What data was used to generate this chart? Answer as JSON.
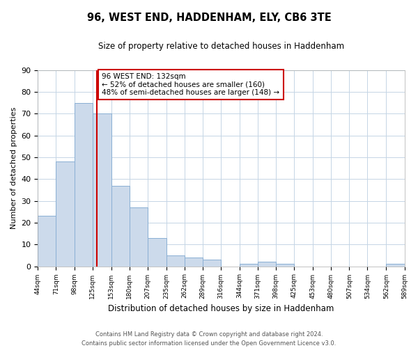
{
  "title": "96, WEST END, HADDENHAM, ELY, CB6 3TE",
  "subtitle": "Size of property relative to detached houses in Haddenham",
  "xlabel": "Distribution of detached houses by size in Haddenham",
  "ylabel": "Number of detached properties",
  "bar_edges": [
    44,
    71,
    98,
    125,
    153,
    180,
    207,
    235,
    262,
    289,
    316,
    344,
    371,
    398,
    425,
    453,
    480,
    507,
    534,
    562,
    589
  ],
  "bar_heights": [
    23,
    48,
    75,
    70,
    37,
    27,
    13,
    5,
    4,
    3,
    0,
    1,
    2,
    1,
    0,
    0,
    0,
    0,
    0,
    1
  ],
  "tick_labels": [
    "44sqm",
    "71sqm",
    "98sqm",
    "125sqm",
    "153sqm",
    "180sqm",
    "207sqm",
    "235sqm",
    "262sqm",
    "289sqm",
    "316sqm",
    "344sqm",
    "371sqm",
    "398sqm",
    "425sqm",
    "453sqm",
    "480sqm",
    "507sqm",
    "534sqm",
    "562sqm",
    "589sqm"
  ],
  "bar_color": "#ccdaeb",
  "bar_edge_color": "#8aafd4",
  "property_line_x": 132,
  "property_line_color": "#cc0000",
  "annotation_title": "96 WEST END: 132sqm",
  "annotation_line1": "← 52% of detached houses are smaller (160)",
  "annotation_line2": "48% of semi-detached houses are larger (148) →",
  "annotation_box_color": "#ffffff",
  "annotation_box_edge": "#cc0000",
  "ylim": [
    0,
    90
  ],
  "yticks": [
    0,
    10,
    20,
    30,
    40,
    50,
    60,
    70,
    80,
    90
  ],
  "footer_line1": "Contains HM Land Registry data © Crown copyright and database right 2024.",
  "footer_line2": "Contains public sector information licensed under the Open Government Licence v3.0.",
  "background_color": "#ffffff",
  "grid_color": "#c5d5e5"
}
